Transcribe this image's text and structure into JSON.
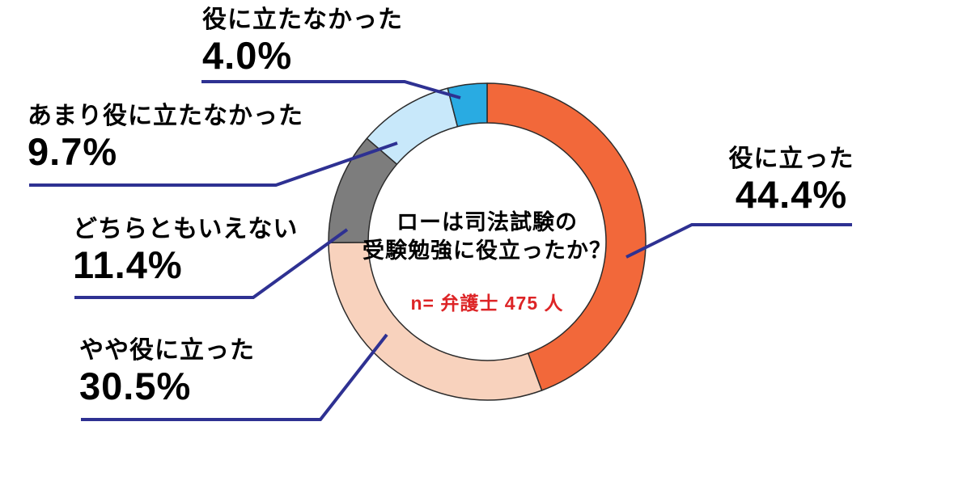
{
  "chart_data": {
    "type": "pie",
    "donut": true,
    "title": "ローは司法試験の受験勉強に役立ったか？",
    "center_title_lines": [
      "ローは司法試験の",
      "受験勉強に役立ったか？"
    ],
    "sample_note": "n= 弁護士 475 人",
    "start_angle_deg": 0,
    "direction": "clockwise",
    "segments": [
      {
        "label": "役に立った",
        "value": 44.4,
        "pct_label": "44.4%",
        "color": "#F2683A"
      },
      {
        "label": "やや役に立った",
        "value": 30.5,
        "pct_label": "30.5%",
        "color": "#F8D2BD"
      },
      {
        "label": "どちらともいえない",
        "value": 11.4,
        "pct_label": "11.4%",
        "color": "#7D7D7D"
      },
      {
        "label": "あまり役に立たなかった",
        "value": 9.7,
        "pct_label": "9.7%",
        "color": "#C8E8FA"
      },
      {
        "label": "役に立たなかった",
        "value": 4.0,
        "pct_label": "4.0%",
        "color": "#29ABE2"
      }
    ],
    "geometry_note": "donut, clockwise from 12 o'clock, labels connected by leader lines"
  },
  "colors": {
    "background": "#FFFFFF",
    "leader_line": "#2E3192",
    "segment_outline": "#2B2B2B",
    "note_red": "#DD2426",
    "text": "#000000"
  }
}
